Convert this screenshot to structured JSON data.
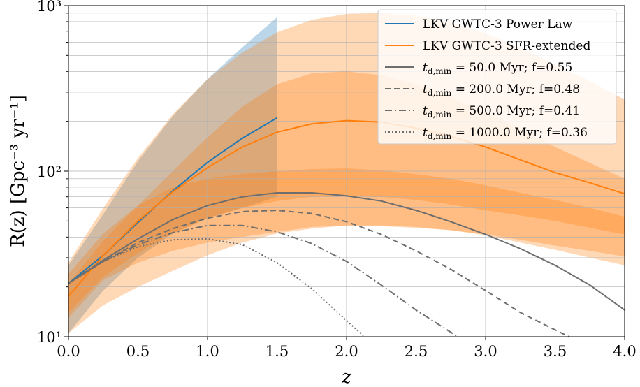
{
  "chart_data": {
    "type": "line",
    "title": "",
    "xlabel": "z",
    "ylabel": "R(z) [Gpc⁻³ yr⁻¹]",
    "xlim": [
      0,
      4
    ],
    "ylim": [
      10,
      1000
    ],
    "yscale": "log",
    "grid": true,
    "legend_position": "top-right",
    "x_ticks": [
      "0.0",
      "0.5",
      "1.0",
      "1.5",
      "2.0",
      "2.5",
      "3.0",
      "3.5",
      "4.0"
    ],
    "y_ticks": [
      "10¹",
      "10²",
      "10³"
    ],
    "bands": [
      {
        "color": "#1f77b4",
        "opacity": 0.3,
        "x": [
          0,
          0.25,
          0.5,
          0.75,
          1.0,
          1.25,
          1.5
        ],
        "lower": [
          10.5,
          19,
          30,
          42,
          52,
          60,
          70
        ],
        "upper": [
          27,
          55,
          115,
          215,
          360,
          560,
          850
        ]
      },
      {
        "color": "#ff7f0e",
        "opacity": 0.3,
        "x": [
          0,
          0.25,
          0.5,
          0.75,
          1.0,
          1.25,
          1.5,
          1.75,
          2.0,
          2.25,
          2.5,
          2.75,
          3.0,
          3.25,
          3.5,
          3.75,
          4.0
        ],
        "lower": [
          10.5,
          15.5,
          20,
          25,
          31,
          37,
          42,
          45,
          47,
          47,
          46,
          44,
          41,
          37,
          33.5,
          30,
          27
        ],
        "upper": [
          28,
          60,
          120,
          220,
          360,
          520,
          690,
          820,
          890,
          900,
          870,
          790,
          680,
          560,
          440,
          350,
          270
        ]
      },
      {
        "color": "#ff7f0e",
        "opacity": 0.3,
        "x": [
          0,
          0.25,
          0.5,
          0.75,
          1.0,
          1.25,
          1.5,
          1.75,
          2.0,
          2.25,
          2.5,
          2.75,
          3.0,
          3.25,
          3.5,
          3.75,
          4.0
        ],
        "lower": [
          14,
          23,
          32,
          42,
          52,
          60,
          66,
          70,
          71,
          70,
          67,
          63,
          58,
          54,
          50,
          45.5,
          41.5
        ],
        "upper": [
          21,
          38,
          62,
          100,
          160,
          245,
          335,
          390,
          400,
          380,
          335,
          280,
          225,
          180,
          140,
          112,
          90
        ]
      },
      {
        "color": "#ff7f0e",
        "opacity": 0.3,
        "x": [
          0,
          0.25,
          0.5,
          0.75,
          1.0,
          1.25,
          1.5,
          1.75,
          2.0,
          2.25,
          2.5,
          2.75,
          3.0,
          3.25,
          3.5,
          3.75,
          4.0
        ],
        "lower": [
          13,
          22,
          28,
          33,
          37,
          40,
          43,
          46,
          47,
          46.5,
          45.5,
          44,
          41.5,
          38.5,
          35.5,
          33,
          30.5
        ],
        "upper": [
          24,
          42,
          62,
          80,
          90,
          96,
          100,
          103,
          104,
          101,
          96,
          90,
          82,
          74,
          67,
          60,
          53
        ]
      }
    ],
    "series": [
      {
        "name": "LKV GWTC-3 Power Law",
        "color": "#1f77b4",
        "dash": "",
        "x": [
          0,
          0.25,
          0.5,
          0.75,
          1.0,
          1.25,
          1.5
        ],
        "y": [
          21,
          31,
          49,
          76,
          113,
          158,
          210
        ]
      },
      {
        "name": "LKV GWTC-3 SFR-extended",
        "color": "#ff7f0e",
        "dash": "",
        "x": [
          0,
          0.25,
          0.5,
          0.75,
          1.0,
          1.25,
          1.5,
          1.75,
          2.0,
          2.25,
          2.5,
          2.75,
          3.0,
          3.25,
          3.5,
          3.75,
          4.0
        ],
        "y": [
          17.5,
          31,
          50,
          75,
          105,
          140,
          172,
          193,
          202,
          198,
          182,
          162,
          140,
          117,
          98,
          85,
          73
        ]
      },
      {
        "name": "$t_{d,\\mathrm{min}} = 50.0\\,\\mathrm{Myr}$; f=0.55",
        "label_main": "t",
        "label_sub": "d,min",
        "label_rest": " = 50.0 Myr; f=0.55",
        "color": "#6e6e6e",
        "dash": "",
        "x": [
          0,
          0.25,
          0.5,
          0.75,
          1.0,
          1.25,
          1.5,
          1.75,
          2.0,
          2.25,
          2.5,
          2.75,
          3.0,
          3.25,
          3.5,
          3.75,
          4.0
        ],
        "y": [
          21,
          29,
          39,
          51,
          62,
          70,
          74,
          74,
          71,
          66,
          58,
          49.5,
          41.5,
          34,
          27,
          20.5,
          14.5
        ]
      },
      {
        "name": "$t_{d,\\mathrm{min}} = 200.0\\,\\mathrm{Myr}$; f=0.48",
        "label_main": "t",
        "label_sub": "d,min",
        "label_rest": " = 200.0 Myr; f=0.48",
        "color": "#6e6e6e",
        "dash": "8,5",
        "x": [
          0,
          0.25,
          0.5,
          0.75,
          1.0,
          1.25,
          1.5,
          1.75,
          2.0,
          2.25,
          2.5,
          2.75,
          3.0,
          3.25,
          3.5,
          3.6
        ],
        "y": [
          21,
          28.5,
          37,
          45,
          52,
          57,
          58,
          55.5,
          49.5,
          41.5,
          33,
          25.5,
          19,
          14,
          11,
          10
        ]
      },
      {
        "name": "$t_{d,\\mathrm{min}} = 500.0\\,\\mathrm{Myr}$; f=0.41",
        "label_main": "t",
        "label_sub": "d,min",
        "label_rest": " = 500.0 Myr; f=0.41",
        "color": "#6e6e6e",
        "dash": "10,4,2,4",
        "x": [
          0,
          0.25,
          0.5,
          0.75,
          1.0,
          1.25,
          1.5,
          1.75,
          2.0,
          2.25,
          2.5,
          2.8
        ],
        "y": [
          21,
          28.5,
          36,
          42.5,
          47,
          47,
          43,
          36.5,
          28.5,
          20.5,
          14.5,
          10
        ]
      },
      {
        "name": "$t_{d,\\mathrm{min}} = 1000.0\\,\\mathrm{Myr}$; f=0.36",
        "label_main": "t",
        "label_sub": "d,min",
        "label_rest": " = 1000.0 Myr; f=0.36",
        "color": "#6e6e6e",
        "dash": "2,3",
        "x": [
          0,
          0.25,
          0.5,
          0.75,
          1.0,
          1.25,
          1.5,
          1.75,
          2.0,
          2.13
        ],
        "y": [
          21,
          28.5,
          35,
          38.5,
          39,
          36,
          28,
          19.5,
          12.5,
          10
        ]
      }
    ]
  }
}
